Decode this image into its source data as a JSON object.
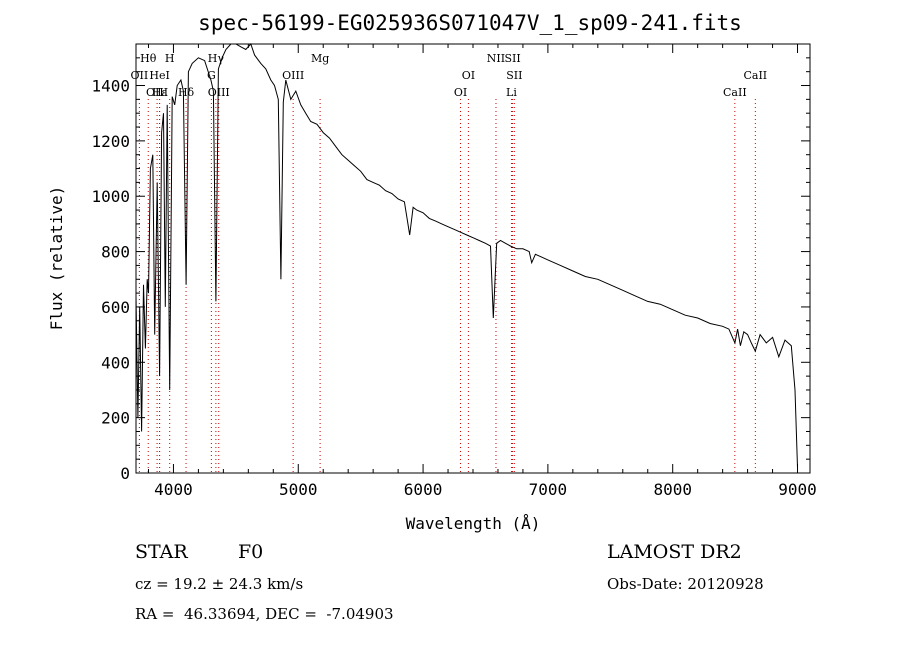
{
  "chart_data": {
    "type": "line",
    "title": "spec-56199-EG025936S071047V_1_sp09-241.fits",
    "xlabel": "Wavelength (Å)",
    "ylabel": "Flux (relative)",
    "xlim": [
      3700,
      9100
    ],
    "ylim": [
      0,
      1550
    ],
    "xticks": [
      4000,
      5000,
      6000,
      7000,
      8000,
      9000
    ],
    "yticks": [
      0,
      200,
      400,
      600,
      800,
      1000,
      1200,
      1400
    ],
    "grid": false,
    "legend": "none",
    "line_color": "#000000",
    "marker_color": "#cc0000",
    "series": [
      {
        "x": [
          3700,
          3715,
          3730,
          3745,
          3760,
          3775,
          3790,
          3800,
          3815,
          3835,
          3850,
          3870,
          3889,
          3905,
          3920,
          3935,
          3950,
          3970,
          3990,
          4010,
          4030,
          4060,
          4080,
          4101,
          4120,
          4150,
          4200,
          4250,
          4300,
          4320,
          4340,
          4360,
          4390,
          4420,
          4460,
          4500,
          4540,
          4580,
          4620,
          4650,
          4700,
          4740,
          4780,
          4810,
          4840,
          4861,
          4880,
          4900,
          4940,
          4980,
          5020,
          5060,
          5100,
          5150,
          5200,
          5250,
          5300,
          5350,
          5400,
          5450,
          5500,
          5550,
          5600,
          5650,
          5700,
          5750,
          5800,
          5850,
          5893,
          5920,
          5950,
          6000,
          6050,
          6100,
          6150,
          6200,
          6250,
          6300,
          6350,
          6400,
          6450,
          6500,
          6540,
          6563,
          6590,
          6620,
          6660,
          6700,
          6750,
          6800,
          6850,
          6870,
          6900,
          6950,
          7000,
          7100,
          7200,
          7300,
          7400,
          7500,
          7600,
          7700,
          7800,
          7900,
          8000,
          8100,
          8200,
          8300,
          8400,
          8450,
          8498,
          8520,
          8542,
          8570,
          8600,
          8630,
          8662,
          8700,
          8750,
          8800,
          8850,
          8900,
          8950,
          8980,
          9000
        ],
        "y": [
          640,
          200,
          600,
          150,
          680,
          450,
          700,
          650,
          1100,
          1150,
          500,
          1050,
          350,
          1230,
          1300,
          600,
          1330,
          300,
          1360,
          1330,
          1400,
          1420,
          1380,
          680,
          1450,
          1480,
          1500,
          1490,
          1420,
          1380,
          620,
          1460,
          1500,
          1530,
          1550,
          1560,
          1540,
          1530,
          1550,
          1510,
          1480,
          1460,
          1420,
          1400,
          1350,
          700,
          1340,
          1420,
          1350,
          1380,
          1330,
          1300,
          1270,
          1260,
          1230,
          1210,
          1180,
          1150,
          1130,
          1110,
          1090,
          1060,
          1050,
          1040,
          1020,
          1010,
          990,
          980,
          860,
          960,
          950,
          940,
          920,
          910,
          900,
          890,
          880,
          870,
          860,
          850,
          840,
          830,
          820,
          560,
          830,
          840,
          830,
          820,
          810,
          810,
          800,
          760,
          790,
          780,
          770,
          750,
          730,
          710,
          700,
          680,
          660,
          640,
          620,
          610,
          590,
          570,
          560,
          540,
          530,
          520,
          470,
          520,
          460,
          510,
          500,
          470,
          440,
          500,
          470,
          490,
          420,
          480,
          460,
          300,
          20
        ]
      }
    ],
    "line_markers": [
      {
        "label": "Hθ",
        "wavelength": 3798,
        "row": 1
      },
      {
        "label": "OII",
        "wavelength": 3727,
        "row": 2
      },
      {
        "label": "OIII",
        "wavelength": 3869,
        "row": 3
      },
      {
        "label": "Hε",
        "wavelength": 3889,
        "row": 3
      },
      {
        "label": "HeI",
        "wavelength": 3889,
        "row": 2
      },
      {
        "label": "H",
        "wavelength": 3970,
        "row": 1
      },
      {
        "label": "Hδ",
        "wavelength": 4101,
        "row": 3
      },
      {
        "label": "Hγ",
        "wavelength": 4340,
        "row": 1
      },
      {
        "label": "G",
        "wavelength": 4304,
        "row": 2
      },
      {
        "label": "OIII",
        "wavelength": 4363,
        "row": 3
      },
      {
        "label": "OIII",
        "wavelength": 4959,
        "row": 2
      },
      {
        "label": "Mg",
        "wavelength": 5175,
        "row": 1
      },
      {
        "label": "OI",
        "wavelength": 6300,
        "row": 3
      },
      {
        "label": "OI",
        "wavelength": 6363,
        "row": 2
      },
      {
        "label": "NII",
        "wavelength": 6584,
        "row": 1
      },
      {
        "label": "SII",
        "wavelength": 6717,
        "row": 1
      },
      {
        "label": "SII",
        "wavelength": 6731,
        "row": 2
      },
      {
        "label": "Li",
        "wavelength": 6708,
        "row": 3
      },
      {
        "label": "CaII",
        "wavelength": 8498,
        "row": 3
      },
      {
        "label": "CaII",
        "wavelength": 8662,
        "row": 2
      }
    ]
  },
  "info": {
    "class_label": "STAR",
    "subclass": "F0",
    "survey": "LAMOST DR2",
    "redshift": "cz = 19.2 ± 24.3 km/s",
    "obs_date": "Obs-Date: 20120928",
    "coords": "RA =  46.33694, DEC =  -7.04903"
  }
}
